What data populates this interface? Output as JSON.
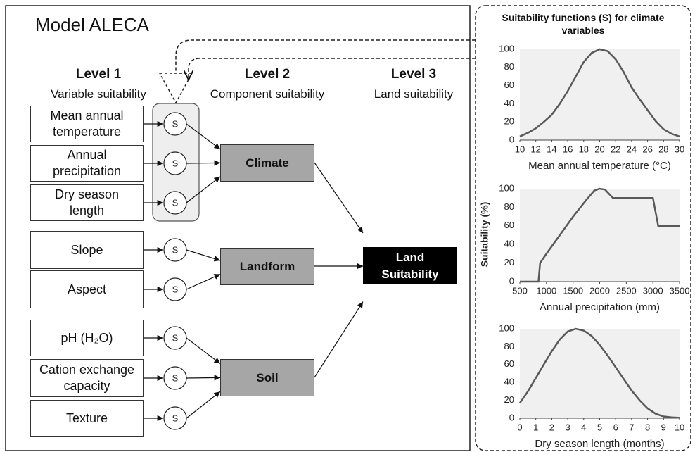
{
  "diagram": {
    "title": "Model ALECA",
    "levels": [
      {
        "name": "Level 1",
        "subtitle": "Variable suitability"
      },
      {
        "name": "Level 2",
        "subtitle": "Component suitability"
      },
      {
        "name": "Level 3",
        "subtitle": "Land suitability"
      }
    ],
    "s_label": "S",
    "variables": [
      "Mean annual temperature",
      "Annual precipitation",
      "Dry season length",
      "Slope",
      "Aspect",
      "pH (H₂O)",
      "Cation exchange capacity",
      "Texture"
    ],
    "components": [
      "Climate",
      "Landform",
      "Soil"
    ],
    "output": "Land Suitability"
  },
  "panel": {
    "title": "Suitability functions (S) for climate variables",
    "y_label": "Suitability (%)"
  },
  "chart_data": [
    {
      "type": "line",
      "x_label": "Mean annual temperature (°C)",
      "x": [
        10,
        11,
        12,
        13,
        14,
        15,
        16,
        17,
        18,
        19,
        20,
        21,
        22,
        23,
        24,
        25,
        26,
        27,
        28,
        29,
        30
      ],
      "series": [
        {
          "color": "#595959",
          "values": [
            4,
            8,
            13,
            20,
            28,
            40,
            54,
            70,
            86,
            96,
            100,
            98,
            89,
            75,
            58,
            45,
            33,
            21,
            12,
            7,
            4
          ]
        }
      ],
      "xlim": [
        10,
        30
      ],
      "xticks": [
        10,
        12,
        14,
        16,
        18,
        20,
        22,
        24,
        26,
        28,
        30
      ],
      "ylim": [
        0,
        100
      ],
      "yticks": [
        0,
        20,
        40,
        60,
        80,
        100
      ],
      "grid": false
    },
    {
      "type": "line",
      "x_label": "Annual precipitation (mm)",
      "x": [
        500,
        850,
        880,
        1000,
        1250,
        1500,
        1750,
        1900,
        2000,
        2100,
        2250,
        3000,
        3100,
        3500
      ],
      "series": [
        {
          "color": "#595959",
          "values": [
            0,
            0,
            20,
            30,
            50,
            70,
            88,
            98,
            100,
            99,
            90,
            90,
            60,
            60
          ]
        }
      ],
      "xlim": [
        500,
        3500
      ],
      "xticks": [
        500,
        1000,
        1500,
        2000,
        2500,
        3000,
        3500
      ],
      "ylim": [
        0,
        100
      ],
      "yticks": [
        0,
        20,
        40,
        60,
        80,
        100
      ],
      "grid": false
    },
    {
      "type": "line",
      "x_label": "Dry season length (months)",
      "x": [
        0,
        0.5,
        1,
        1.5,
        2,
        2.5,
        3,
        3.5,
        4,
        4.5,
        5,
        5.5,
        6,
        6.5,
        7,
        7.5,
        8,
        8.5,
        9,
        9.5,
        10
      ],
      "series": [
        {
          "color": "#595959",
          "values": [
            17,
            30,
            45,
            60,
            75,
            88,
            97,
            100,
            98,
            92,
            82,
            70,
            57,
            44,
            31,
            20,
            11,
            5,
            2,
            1,
            0.5
          ]
        }
      ],
      "xlim": [
        0,
        10
      ],
      "xticks": [
        0,
        1,
        2,
        3,
        4,
        5,
        6,
        7,
        8,
        9,
        10
      ],
      "ylim": [
        0,
        100
      ],
      "yticks": [
        0,
        20,
        40,
        60,
        80,
        100
      ],
      "grid": false
    }
  ]
}
